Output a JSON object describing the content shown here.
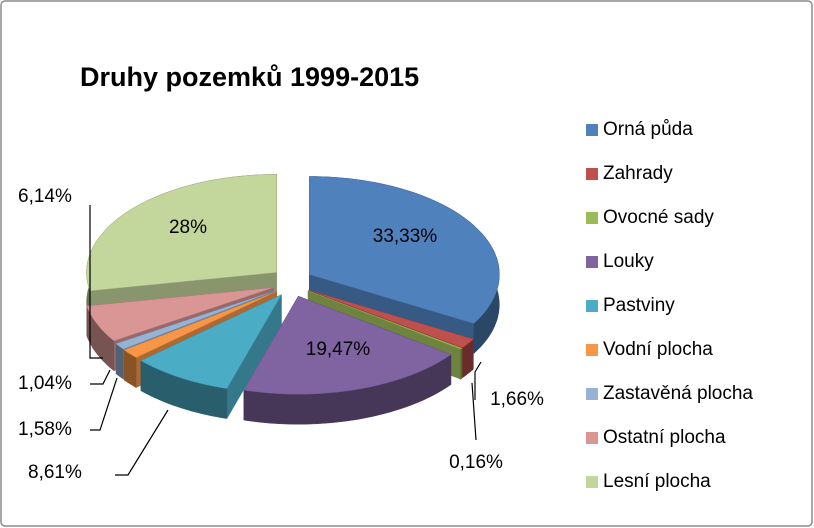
{
  "chart_data": {
    "type": "pie",
    "title": "Druhy pozemků 1999-2015",
    "categories": [
      "Orná půda",
      "Zahrady",
      "Ovocné sady",
      "Louky",
      "Pastviny",
      "Vodní plocha",
      "Zastavěná plocha",
      "Ostatní plocha",
      "Lesní plocha"
    ],
    "values": [
      33.33,
      1.66,
      0.16,
      19.47,
      8.61,
      1.58,
      1.04,
      6.14,
      28
    ],
    "value_labels": [
      "33,33%",
      "1,66%",
      "0,16%",
      "19,47%",
      "8,61%",
      "1,58%",
      "1,04%",
      "6,14%",
      "28%"
    ],
    "colors": [
      "#4f81bd",
      "#c0504d",
      "#9bbb59",
      "#8064a2",
      "#4bacc6",
      "#f79646",
      "#95b3d7",
      "#d99694",
      "#c3d69b"
    ],
    "legend": "right"
  }
}
